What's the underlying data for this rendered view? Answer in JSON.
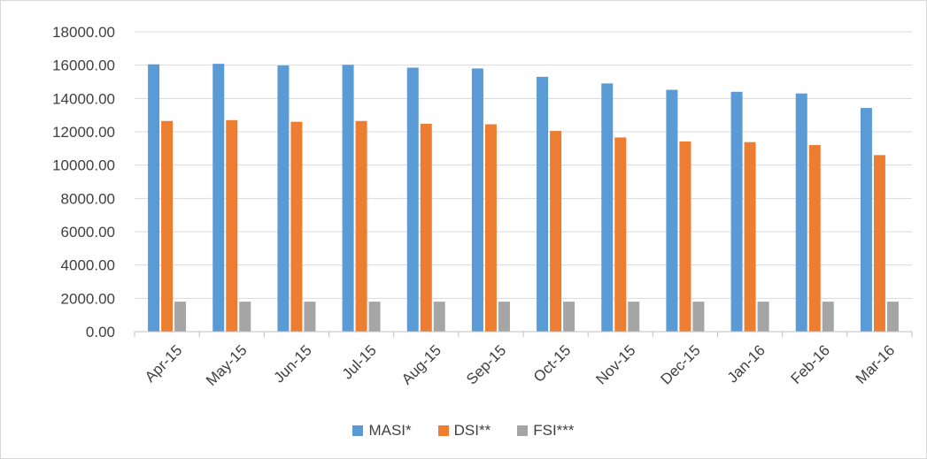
{
  "chart_data": {
    "type": "bar",
    "categories": [
      "Apr-15",
      "May-15",
      "Jun-15",
      "Jul-15",
      "Aug-15",
      "Sep-15",
      "Oct-15",
      "Nov-15",
      "Dec-15",
      "Jan-16",
      "Feb-16",
      "Mar-16"
    ],
    "series": [
      {
        "name": "MASI*",
        "color": "#5b9bd5",
        "values": [
          16050,
          16080,
          15980,
          16020,
          15850,
          15800,
          15300,
          14900,
          14520,
          14400,
          14300,
          13430
        ]
      },
      {
        "name": "DSI**",
        "color": "#ed7d31",
        "values": [
          12650,
          12700,
          12600,
          12650,
          12480,
          12450,
          12050,
          11660,
          11420,
          11380,
          11200,
          10600
        ]
      },
      {
        "name": "FSI***",
        "color": "#a5a5a5",
        "values": [
          1800,
          1800,
          1800,
          1800,
          1800,
          1800,
          1800,
          1800,
          1800,
          1800,
          1800,
          1800
        ]
      }
    ],
    "yticks": [
      "0.00",
      "2000.00",
      "4000.00",
      "6000.00",
      "8000.00",
      "10000.00",
      "12000.00",
      "14000.00",
      "16000.00",
      "18000.00"
    ],
    "ylim": [
      0,
      18000
    ],
    "grid": true,
    "legend_position": "bottom"
  }
}
